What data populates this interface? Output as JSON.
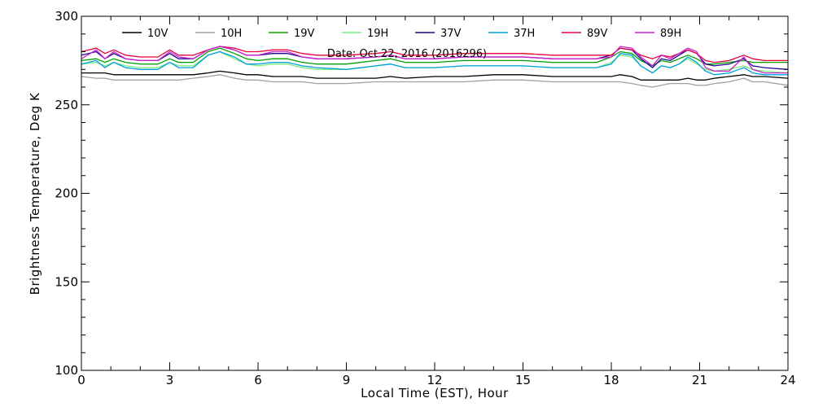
{
  "chart_data": {
    "type": "line",
    "title": "",
    "annotation": "Date: Oct 22, 2016 (2016296)",
    "xlabel": "Local Time (EST), Hour",
    "ylabel": "Brightness Temperature, Deg K",
    "xlim": [
      0,
      24
    ],
    "ylim": [
      100,
      300
    ],
    "xticks": [
      0,
      3,
      6,
      9,
      12,
      15,
      18,
      21,
      24
    ],
    "yticks": [
      100,
      150,
      200,
      250,
      300
    ],
    "grid": false,
    "legend_position": "top",
    "x": [
      0,
      0.5,
      0.8,
      1.1,
      1.5,
      2,
      2.6,
      3,
      3.3,
      3.8,
      4.3,
      4.7,
      5.2,
      5.6,
      6,
      6.5,
      7,
      7.5,
      8,
      9,
      10,
      10.5,
      11,
      12,
      13,
      14,
      15,
      16,
      17,
      17.5,
      18,
      18.3,
      18.7,
      19,
      19.4,
      19.7,
      20,
      20.3,
      20.6,
      20.9,
      21.2,
      21.5,
      22,
      22.5,
      22.8,
      23.2,
      24
    ],
    "series": [
      {
        "name": "10V",
        "color": "#000000",
        "values": [
          268,
          268,
          268,
          267,
          267,
          267,
          267,
          267,
          267,
          267,
          268,
          269,
          268,
          267,
          267,
          266,
          266,
          266,
          265,
          265,
          265,
          266,
          265,
          266,
          266,
          267,
          267,
          266,
          266,
          266,
          266,
          267,
          266,
          264,
          264,
          264,
          264,
          264,
          265,
          264,
          264,
          265,
          266,
          267,
          266,
          266,
          265
        ]
      },
      {
        "name": "10H",
        "color": "#a0a0a0",
        "values": [
          266,
          265,
          265,
          264,
          264,
          264,
          264,
          264,
          264,
          265,
          266,
          267,
          265,
          264,
          264,
          263,
          263,
          263,
          262,
          262,
          263,
          263,
          263,
          263,
          263,
          264,
          264,
          263,
          263,
          263,
          263,
          263,
          262,
          261,
          260,
          261,
          262,
          262,
          262,
          261,
          261,
          262,
          263,
          265,
          263,
          263,
          261
        ]
      },
      {
        "name": "19V",
        "color": "#00a000",
        "values": [
          275,
          276,
          274,
          276,
          274,
          273,
          273,
          276,
          274,
          274,
          280,
          282,
          279,
          276,
          275,
          276,
          276,
          274,
          273,
          273,
          275,
          276,
          274,
          274,
          275,
          275,
          275,
          274,
          274,
          274,
          277,
          280,
          279,
          275,
          272,
          275,
          274,
          276,
          278,
          276,
          273,
          273,
          274,
          275,
          274,
          274,
          274
        ]
      },
      {
        "name": "19H",
        "color": "#7cec7c",
        "values": [
          273,
          274,
          272,
          274,
          272,
          271,
          271,
          274,
          272,
          272,
          278,
          280,
          276,
          273,
          272,
          273,
          273,
          271,
          270,
          270,
          272,
          273,
          271,
          271,
          272,
          272,
          272,
          271,
          271,
          271,
          274,
          278,
          277,
          272,
          268,
          272,
          271,
          273,
          276,
          273,
          270,
          269,
          270,
          272,
          270,
          269,
          268
        ]
      },
      {
        "name": "37V",
        "color": "#1c0a94",
        "values": [
          278,
          280,
          276,
          279,
          276,
          275,
          275,
          279,
          276,
          276,
          281,
          283,
          281,
          278,
          278,
          279,
          279,
          277,
          276,
          276,
          277,
          278,
          276,
          276,
          277,
          277,
          277,
          276,
          276,
          276,
          278,
          282,
          281,
          276,
          271,
          276,
          275,
          278,
          281,
          279,
          273,
          272,
          273,
          276,
          272,
          271,
          270
        ]
      },
      {
        "name": "37H",
        "color": "#00a0e0",
        "values": [
          273,
          275,
          271,
          274,
          271,
          270,
          270,
          274,
          271,
          271,
          278,
          280,
          277,
          273,
          273,
          274,
          274,
          272,
          271,
          270,
          272,
          273,
          271,
          271,
          272,
          272,
          272,
          271,
          271,
          271,
          273,
          279,
          278,
          272,
          268,
          272,
          271,
          273,
          277,
          274,
          269,
          267,
          268,
          271,
          268,
          267,
          267
        ]
      },
      {
        "name": "89V",
        "color": "#e8003c",
        "values": [
          280,
          282,
          279,
          281,
          278,
          277,
          277,
          281,
          278,
          278,
          281,
          283,
          282,
          280,
          280,
          281,
          281,
          279,
          278,
          278,
          279,
          280,
          278,
          278,
          279,
          279,
          279,
          278,
          278,
          278,
          278,
          282,
          281,
          278,
          276,
          278,
          277,
          279,
          281,
          279,
          275,
          274,
          275,
          278,
          276,
          275,
          275
        ]
      },
      {
        "name": "89H",
        "color": "#cc22cc",
        "values": [
          276,
          281,
          276,
          280,
          276,
          275,
          275,
          280,
          277,
          276,
          281,
          283,
          281,
          278,
          278,
          280,
          280,
          277,
          276,
          276,
          277,
          278,
          276,
          276,
          277,
          277,
          277,
          276,
          276,
          276,
          277,
          283,
          282,
          277,
          272,
          278,
          276,
          279,
          282,
          280,
          271,
          269,
          269,
          277,
          270,
          268,
          268
        ]
      }
    ]
  }
}
